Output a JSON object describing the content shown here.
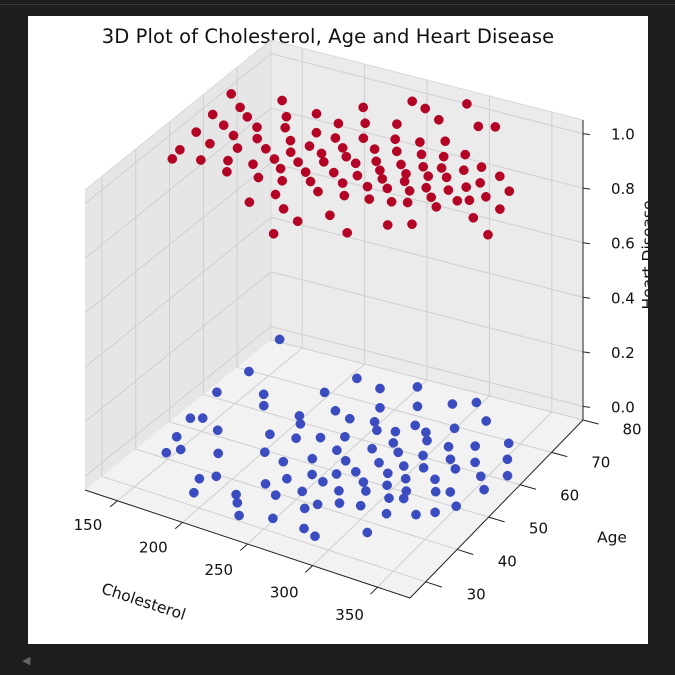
{
  "chart_data": {
    "type": "scatter",
    "title": "3D Plot of Cholesterol, Age and Heart Disease",
    "xlabel": "Cholesterol",
    "ylabel": "Age",
    "zlabel": "Heart Disease",
    "xlim": [
      125,
      375
    ],
    "ylim": [
      25,
      80
    ],
    "zlim": [
      -0.05,
      1.05
    ],
    "x_ticks": [
      150,
      200,
      250,
      300,
      350
    ],
    "y_ticks": [
      30,
      40,
      50,
      60,
      70,
      80
    ],
    "z_ticks": [
      "0.0",
      "0.2",
      "0.4",
      "0.6",
      "0.8",
      "1.0"
    ],
    "grid": true,
    "series": [
      {
        "color": "#3b4cc0",
        "z": 0,
        "points": [
          [
            140,
            77
          ],
          [
            145,
            66
          ],
          [
            141,
            58
          ],
          [
            144,
            49
          ],
          [
            151,
            50
          ],
          [
            149,
            43
          ],
          [
            160,
            40
          ],
          [
            154,
            38
          ],
          [
            170,
            61
          ],
          [
            178,
            58
          ],
          [
            168,
            48
          ],
          [
            184,
            42
          ],
          [
            190,
            34
          ],
          [
            198,
            36
          ],
          [
            205,
            66
          ],
          [
            206,
            58
          ],
          [
            201,
            51
          ],
          [
            210,
            46
          ],
          [
            212,
            56
          ],
          [
            215,
            72
          ],
          [
            224,
            62
          ],
          [
            219,
            52
          ],
          [
            227,
            45
          ],
          [
            231,
            38
          ],
          [
            221,
            33
          ],
          [
            236,
            71
          ],
          [
            238,
            61
          ],
          [
            233,
            54
          ],
          [
            242,
            48
          ],
          [
            240,
            41
          ],
          [
            244,
            36
          ],
          [
            249,
            66
          ],
          [
            247,
            56
          ],
          [
            251,
            52
          ],
          [
            252,
            44
          ],
          [
            257,
            39
          ],
          [
            258,
            74
          ],
          [
            262,
            60
          ],
          [
            255,
            62
          ],
          [
            263,
            50
          ],
          [
            266,
            46
          ],
          [
            269,
            35
          ],
          [
            271,
            69
          ],
          [
            274,
            61
          ],
          [
            271,
            55
          ],
          [
            276,
            48
          ],
          [
            278,
            42
          ],
          [
            282,
            64
          ],
          [
            280,
            58
          ],
          [
            284,
            52
          ],
          [
            287,
            46
          ],
          [
            286,
            39
          ],
          [
            291,
            72
          ],
          [
            293,
            63
          ],
          [
            289,
            56
          ],
          [
            296,
            50
          ],
          [
            294,
            44
          ],
          [
            299,
            61
          ],
          [
            301,
            53
          ],
          [
            303,
            47
          ],
          [
            300,
            40
          ],
          [
            305,
            74
          ],
          [
            308,
            66
          ],
          [
            306,
            57
          ],
          [
            310,
            50
          ],
          [
            312,
            44
          ],
          [
            316,
            61
          ],
          [
            314,
            54
          ],
          [
            318,
            47
          ],
          [
            320,
            40
          ],
          [
            323,
            70
          ],
          [
            325,
            58
          ],
          [
            328,
            52
          ],
          [
            321,
            45
          ],
          [
            332,
            63
          ],
          [
            334,
            56
          ],
          [
            336,
            49
          ],
          [
            338,
            42
          ],
          [
            342,
            59
          ],
          [
            345,
            50
          ],
          [
            348,
            44
          ],
          [
            351,
            66
          ],
          [
            354,
            56
          ],
          [
            357,
            47
          ],
          [
            360,
            62
          ],
          [
            364,
            53
          ],
          [
            370,
            58
          ],
          [
            281,
            30
          ],
          [
            257,
            30
          ],
          [
            292,
            29
          ],
          [
            236,
            28
          ],
          [
            227,
            31
          ],
          [
            320,
            34
          ],
          [
            196,
            30
          ],
          [
            263,
            43
          ],
          [
            274,
            37
          ]
        ]
      },
      {
        "color": "#b40426",
        "z": 1,
        "points": [
          [
            131,
            66
          ],
          [
            135,
            59
          ],
          [
            138,
            53
          ],
          [
            141,
            47
          ],
          [
            146,
            63
          ],
          [
            149,
            57
          ],
          [
            143,
            44
          ],
          [
            154,
            51
          ],
          [
            157,
            61
          ],
          [
            162,
            55
          ],
          [
            160,
            46
          ],
          [
            166,
            68
          ],
          [
            170,
            59
          ],
          [
            173,
            52
          ],
          [
            176,
            48
          ],
          [
            180,
            64
          ],
          [
            178,
            56
          ],
          [
            183,
            45
          ],
          [
            187,
            61
          ],
          [
            190,
            54
          ],
          [
            193,
            49
          ],
          [
            196,
            67
          ],
          [
            199,
            58
          ],
          [
            202,
            52
          ],
          [
            205,
            46
          ],
          [
            209,
            62
          ],
          [
            207,
            55
          ],
          [
            212,
            50
          ],
          [
            216,
            66
          ],
          [
            214,
            58
          ],
          [
            218,
            53
          ],
          [
            221,
            47
          ],
          [
            224,
            62
          ],
          [
            226,
            57
          ],
          [
            229,
            51
          ],
          [
            232,
            68
          ],
          [
            235,
            60
          ],
          [
            233,
            55
          ],
          [
            238,
            49
          ],
          [
            241,
            64
          ],
          [
            243,
            58
          ],
          [
            246,
            53
          ],
          [
            249,
            47
          ],
          [
            252,
            70
          ],
          [
            255,
            62
          ],
          [
            253,
            57
          ],
          [
            258,
            51
          ],
          [
            261,
            66
          ],
          [
            264,
            59
          ],
          [
            262,
            54
          ],
          [
            267,
            48
          ],
          [
            270,
            63
          ],
          [
            272,
            57
          ],
          [
            275,
            52
          ],
          [
            278,
            67
          ],
          [
            281,
            60
          ],
          [
            279,
            55
          ],
          [
            284,
            49
          ],
          [
            287,
            64
          ],
          [
            290,
            58
          ],
          [
            288,
            53
          ],
          [
            293,
            69
          ],
          [
            296,
            61
          ],
          [
            294,
            56
          ],
          [
            299,
            50
          ],
          [
            302,
            65
          ],
          [
            305,
            59
          ],
          [
            303,
            54
          ],
          [
            308,
            62
          ],
          [
            311,
            56
          ],
          [
            309,
            51
          ],
          [
            314,
            67
          ],
          [
            317,
            60
          ],
          [
            320,
            54
          ],
          [
            323,
            63
          ],
          [
            326,
            57
          ],
          [
            329,
            52
          ],
          [
            332,
            65
          ],
          [
            335,
            59
          ],
          [
            338,
            55
          ],
          [
            341,
            61
          ],
          [
            345,
            56
          ],
          [
            349,
            64
          ],
          [
            353,
            58
          ],
          [
            358,
            52
          ],
          [
            364,
            61
          ],
          [
            369,
            56
          ],
          [
            377,
            49
          ],
          [
            246,
            77
          ],
          [
            259,
            76
          ],
          [
            282,
            80
          ],
          [
            304,
            75
          ],
          [
            315,
            76
          ],
          [
            226,
            43
          ],
          [
            240,
            40
          ],
          [
            256,
            38
          ],
          [
            271,
            42
          ],
          [
            292,
            39
          ],
          [
            250,
            33
          ],
          [
            311,
            44
          ],
          [
            325,
            46
          ],
          [
            220,
            72
          ],
          [
            275,
            74
          ],
          [
            216,
            39
          ]
        ]
      }
    ]
  }
}
